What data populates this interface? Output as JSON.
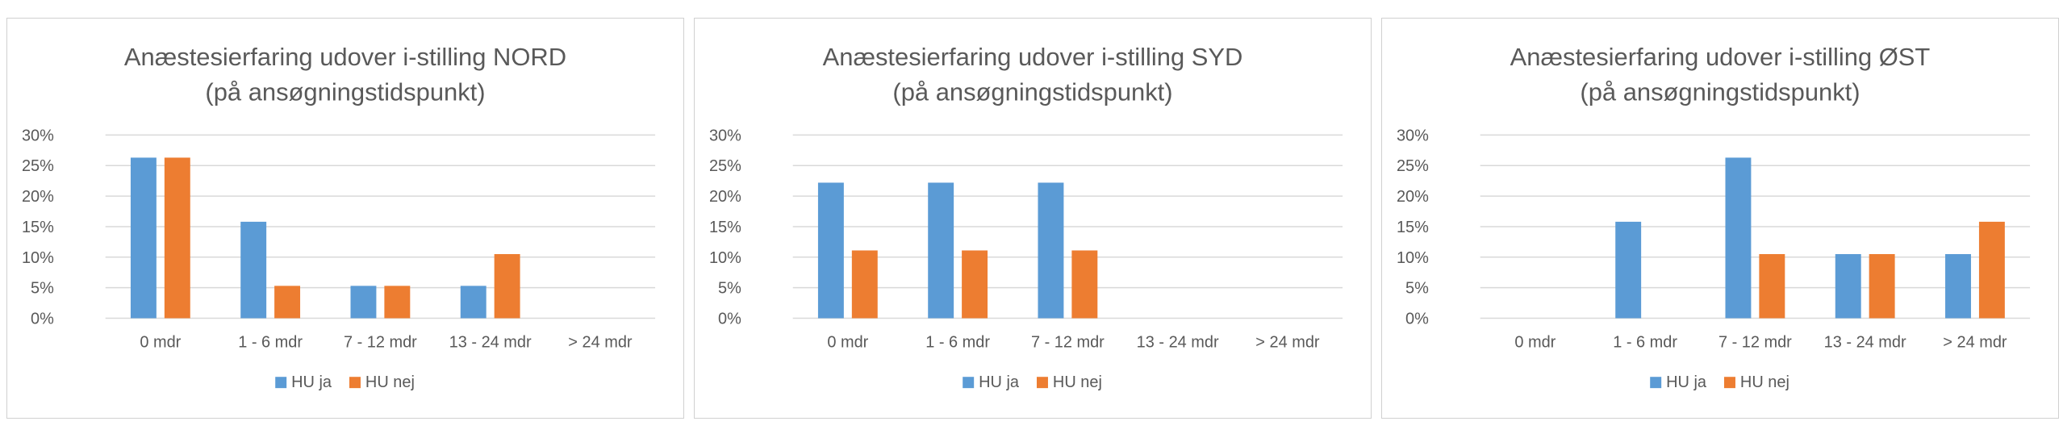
{
  "colors": {
    "hu_ja": "#5b9bd5",
    "hu_nej": "#ed7d31",
    "grid": "#d9d9d9",
    "text": "#595959"
  },
  "chart_data": [
    {
      "type": "bar",
      "title": [
        "Anæstesierfaring udover i-stilling NORD",
        "(på ansøgningstidspunkt)"
      ],
      "categories": [
        "0 mdr",
        "1 - 6 mdr",
        "7 - 12 mdr",
        "13 - 24 mdr",
        "> 24 mdr"
      ],
      "ylim": [
        0,
        0.3
      ],
      "yticks": [
        "0%",
        "5%",
        "10%",
        "15%",
        "20%",
        "25%",
        "30%"
      ],
      "grid": true,
      "legend": "bottom",
      "series": [
        {
          "name": "HU ja",
          "values": [
            0.263,
            0.158,
            0.053,
            0.053,
            0
          ]
        },
        {
          "name": "HU nej",
          "values": [
            0.263,
            0.053,
            0.053,
            0.105,
            0
          ]
        }
      ]
    },
    {
      "type": "bar",
      "title": [
        "Anæstesierfaring udover i-stilling SYD",
        "(på ansøgningstidspunkt)"
      ],
      "categories": [
        "0 mdr",
        "1 - 6 mdr",
        "7 - 12 mdr",
        "13 - 24 mdr",
        "> 24 mdr"
      ],
      "ylim": [
        0,
        0.3
      ],
      "yticks": [
        "0%",
        "5%",
        "10%",
        "15%",
        "20%",
        "25%",
        "30%"
      ],
      "grid": true,
      "legend": "bottom",
      "series": [
        {
          "name": "HU ja",
          "values": [
            0.222,
            0.222,
            0.222,
            0,
            0
          ]
        },
        {
          "name": "HU nej",
          "values": [
            0.111,
            0.111,
            0.111,
            0,
            0
          ]
        }
      ]
    },
    {
      "type": "bar",
      "title": [
        "Anæstesierfaring udover i-stilling ØST",
        "(på ansøgningstidspunkt)"
      ],
      "categories": [
        "0 mdr",
        "1 - 6 mdr",
        "7 - 12 mdr",
        "13 - 24 mdr",
        "> 24 mdr"
      ],
      "ylim": [
        0,
        0.3
      ],
      "yticks": [
        "0%",
        "5%",
        "10%",
        "15%",
        "20%",
        "25%",
        "30%"
      ],
      "grid": true,
      "legend": "bottom",
      "series": [
        {
          "name": "HU ja",
          "values": [
            0,
            0.158,
            0.263,
            0.105,
            0.105
          ]
        },
        {
          "name": "HU nej",
          "values": [
            0,
            0,
            0.105,
            0.105,
            0.158
          ]
        }
      ]
    }
  ]
}
